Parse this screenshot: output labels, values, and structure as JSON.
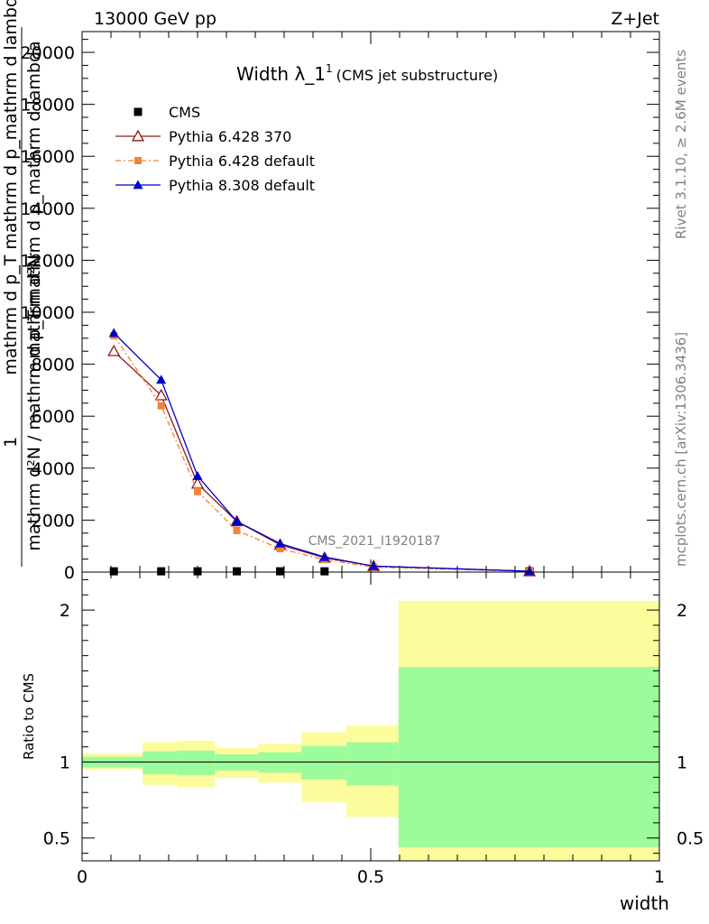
{
  "header": {
    "energy_label": "13000 GeV pp",
    "process_label": "Z+Jet",
    "rivet_label": "Rivet 3.1.10, ≥ 2.6M events",
    "mcplots_label": "mcplots.cern.ch [arXiv:1306.3436]",
    "analysis_watermark": "CMS_2021_I1920187"
  },
  "chart_data": [
    {
      "panel": "main",
      "type": "line",
      "title_main": "Width λ_1",
      "title_sup": "1",
      "title_sub": "(CMS jet substructure)",
      "ylabel_numer": "1",
      "ylabel_denom": "mathrm d²N / mathrm d p_T mathrm d p_mathrm d lambda",
      "ylabel_top": "mathrm d²N",
      "ylabel_mid": "mathrm d p_T mathrm d p_mathrm d lambda",
      "xlim": [
        0,
        1
      ],
      "ylim": [
        0,
        20800
      ],
      "yticks": [
        0,
        2000,
        4000,
        6000,
        8000,
        10000,
        12000,
        14000,
        16000,
        18000,
        20000
      ],
      "ytick_labels": [
        "0",
        "2000",
        "4000",
        "6000",
        "8000",
        "10000",
        "12000",
        "14000",
        "16000",
        "18000",
        "20000"
      ],
      "legend": [
        {
          "name": "CMS",
          "color": "#000000",
          "marker": "square",
          "dash": ""
        },
        {
          "name": "Pythia 6.428 370",
          "color": "#8b1a1a",
          "marker": "open-triangle",
          "dash": ""
        },
        {
          "name": "Pythia 6.428 default",
          "color": "#f4823a",
          "marker": "small-square",
          "dash": "6,3,2,3"
        },
        {
          "name": "Pythia 8.308 default",
          "color": "#0000cc",
          "marker": "triangle",
          "dash": ""
        }
      ],
      "series": [
        {
          "name": "CMS",
          "x": [
            0.055,
            0.137,
            0.2,
            0.268,
            0.343,
            0.42,
            0.775
          ],
          "y": [
            30,
            30,
            30,
            30,
            30,
            30,
            30
          ]
        },
        {
          "name": "Pythia 6.428 370",
          "x": [
            0.055,
            0.137,
            0.2,
            0.268,
            0.343,
            0.42,
            0.505,
            0.775
          ],
          "y": [
            8500,
            6800,
            3400,
            1950,
            1050,
            550,
            230,
            30
          ]
        },
        {
          "name": "Pythia 6.428 default",
          "x": [
            0.055,
            0.137,
            0.2,
            0.268,
            0.343,
            0.42,
            0.505,
            0.775
          ],
          "y": [
            9100,
            6400,
            3100,
            1600,
            900,
            480,
            190,
            25
          ]
        },
        {
          "name": "Pythia 8.308 default",
          "x": [
            0.055,
            0.137,
            0.2,
            0.268,
            0.343,
            0.42,
            0.505,
            0.775
          ],
          "y": [
            9200,
            7400,
            3700,
            1950,
            1100,
            580,
            230,
            35
          ]
        }
      ]
    },
    {
      "panel": "ratio",
      "type": "area",
      "ylabel": "Ratio to CMS",
      "xlabel": "width",
      "xlim": [
        0,
        1
      ],
      "ylim": [
        0.35,
        2.25
      ],
      "xticks": [
        0,
        0.5,
        1
      ],
      "xtick_labels": [
        "0",
        "0.5",
        "1"
      ],
      "yticks": [
        0.5,
        1,
        2
      ],
      "ytick_labels": [
        "0.5",
        "1",
        "2"
      ],
      "bins": [
        {
          "x0": 0.0,
          "x1": 0.105,
          "stat_lo": 0.965,
          "stat_hi": 1.035,
          "tot_lo": 0.95,
          "tot_hi": 1.055
        },
        {
          "x0": 0.105,
          "x1": 0.165,
          "stat_lo": 0.92,
          "stat_hi": 1.07,
          "tot_lo": 0.85,
          "tot_hi": 1.13
        },
        {
          "x0": 0.165,
          "x1": 0.23,
          "stat_lo": 0.915,
          "stat_hi": 1.075,
          "tot_lo": 0.835,
          "tot_hi": 1.14
        },
        {
          "x0": 0.23,
          "x1": 0.305,
          "stat_lo": 0.945,
          "stat_hi": 1.05,
          "tot_lo": 0.895,
          "tot_hi": 1.095
        },
        {
          "x0": 0.305,
          "x1": 0.38,
          "stat_lo": 0.93,
          "stat_hi": 1.065,
          "tot_lo": 0.865,
          "tot_hi": 1.12
        },
        {
          "x0": 0.38,
          "x1": 0.458,
          "stat_lo": 0.885,
          "stat_hi": 1.105,
          "tot_lo": 0.735,
          "tot_hi": 1.195
        },
        {
          "x0": 0.458,
          "x1": 0.548,
          "stat_lo": 0.845,
          "stat_hi": 1.13,
          "tot_lo": 0.64,
          "tot_hi": 1.24
        },
        {
          "x0": 0.548,
          "x1": 1.0,
          "stat_lo": 0.44,
          "stat_hi": 1.625,
          "tot_lo": 0.35,
          "tot_hi": 2.06
        }
      ],
      "stat_color": "#9cfc9c",
      "total_color": "#fcfc9c"
    }
  ]
}
